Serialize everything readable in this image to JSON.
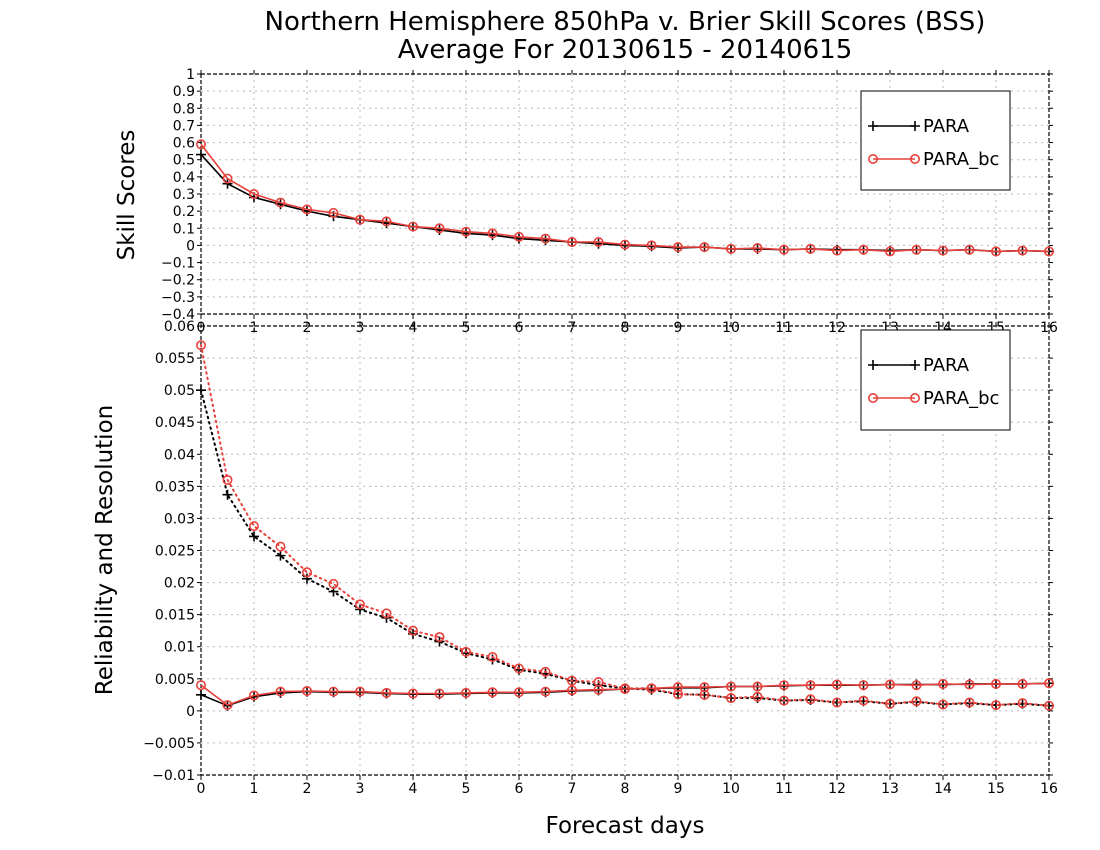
{
  "title_line1": "Northern Hemisphere 850hPa v. Brier Skill Scores (BSS)",
  "title_line2": "Average For 20130615 - 20140615",
  "xlabel": "Forecast days",
  "colors": {
    "PARA": "#000000",
    "PARA_bc": "#e8413c"
  },
  "chart_data": [
    {
      "type": "line",
      "ylabel": "Skill Scores",
      "xlim": [
        0,
        16
      ],
      "ylim": [
        -0.4,
        1
      ],
      "x_ticks": [
        0,
        1,
        2,
        3,
        4,
        5,
        6,
        7,
        8,
        9,
        10,
        11,
        12,
        13,
        14,
        15,
        16
      ],
      "y_ticks": [
        -0.4,
        -0.3,
        -0.2,
        -0.1,
        0,
        0.1,
        0.2,
        0.3,
        0.4,
        0.5,
        0.6,
        0.7,
        0.8,
        0.9,
        1
      ],
      "grid": true,
      "legend": "top-right",
      "x": [
        0,
        0.5,
        1,
        1.5,
        2,
        2.5,
        3,
        3.5,
        4,
        4.5,
        5,
        5.5,
        6,
        6.5,
        7,
        7.5,
        8,
        8.5,
        9,
        9.5,
        10,
        10.5,
        11,
        11.5,
        12,
        12.5,
        13,
        13.5,
        14,
        14.5,
        15,
        15.5,
        16
      ],
      "series": [
        {
          "name": "PARA",
          "style": "solid",
          "marker": "plus",
          "values": [
            0.53,
            0.36,
            0.28,
            0.24,
            0.2,
            0.17,
            0.15,
            0.13,
            0.11,
            0.09,
            0.07,
            0.06,
            0.04,
            0.03,
            0.02,
            0.01,
            0.0,
            -0.005,
            -0.015,
            -0.01,
            -0.02,
            -0.02,
            -0.025,
            -0.02,
            -0.025,
            -0.025,
            -0.03,
            -0.025,
            -0.03,
            -0.025,
            -0.035,
            -0.03,
            -0.035
          ]
        },
        {
          "name": "PARA_bc",
          "style": "solid",
          "marker": "circle",
          "values": [
            0.59,
            0.39,
            0.3,
            0.25,
            0.21,
            0.19,
            0.15,
            0.14,
            0.11,
            0.1,
            0.08,
            0.07,
            0.05,
            0.04,
            0.02,
            0.02,
            0.005,
            0.0,
            -0.01,
            -0.01,
            -0.02,
            -0.015,
            -0.025,
            -0.02,
            -0.03,
            -0.025,
            -0.035,
            -0.025,
            -0.03,
            -0.025,
            -0.035,
            -0.03,
            -0.035
          ]
        }
      ]
    },
    {
      "type": "line",
      "ylabel": "Reliability and Resolution",
      "xlim": [
        0,
        16
      ],
      "ylim": [
        -0.01,
        0.06
      ],
      "x_ticks": [
        0,
        1,
        2,
        3,
        4,
        5,
        6,
        7,
        8,
        9,
        10,
        11,
        12,
        13,
        14,
        15,
        16
      ],
      "y_ticks": [
        -0.01,
        -0.005,
        0,
        0.005,
        0.01,
        0.015,
        0.02,
        0.025,
        0.03,
        0.035,
        0.04,
        0.045,
        0.05,
        0.055,
        0.06
      ],
      "y_tick_labels": [
        "−0.01",
        "−0.005",
        "0",
        "0.005",
        "0.01",
        "0.015",
        "0.02",
        "0.025",
        "0.03",
        "0.035",
        "0.04",
        "0.045",
        "0.05",
        "0.055",
        "0.06"
      ],
      "grid": true,
      "legend": "top-right",
      "x": [
        0,
        0.5,
        1,
        1.5,
        2,
        2.5,
        3,
        3.5,
        4,
        4.5,
        5,
        5.5,
        6,
        6.5,
        7,
        7.5,
        8,
        8.5,
        9,
        9.5,
        10,
        10.5,
        11,
        11.5,
        12,
        12.5,
        13,
        13.5,
        14,
        14.5,
        15,
        15.5,
        16
      ],
      "series": [
        {
          "name": "PARA",
          "style": "dotted",
          "marker": "plus",
          "values": [
            0.05,
            0.0337,
            0.0272,
            0.0242,
            0.0206,
            0.0186,
            0.0158,
            0.0145,
            0.012,
            0.0108,
            0.009,
            0.008,
            0.0064,
            0.0058,
            0.0047,
            0.004,
            0.0035,
            0.0033,
            0.0026,
            0.0025,
            0.002,
            0.002,
            0.0016,
            0.0017,
            0.0013,
            0.0015,
            0.0011,
            0.0014,
            0.001,
            0.0012,
            0.0009,
            0.0011,
            0.0008
          ]
        },
        {
          "name": "PARA_bc",
          "style": "dotted",
          "marker": "circle",
          "values": [
            0.057,
            0.036,
            0.0288,
            0.0256,
            0.0216,
            0.0198,
            0.0166,
            0.0152,
            0.0125,
            0.0115,
            0.0092,
            0.0084,
            0.0066,
            0.0061,
            0.0047,
            0.0045,
            0.0035,
            0.0035,
            0.0026,
            0.0025,
            0.002,
            0.0022,
            0.0016,
            0.0018,
            0.0013,
            0.0016,
            0.0011,
            0.0015,
            0.001,
            0.0013,
            0.0009,
            0.0012,
            0.0008
          ]
        },
        {
          "name": "PARA",
          "style": "solid",
          "marker": "plus",
          "values": [
            0.0025,
            0.0008,
            0.0022,
            0.0028,
            0.003,
            0.0029,
            0.0029,
            0.0027,
            0.0026,
            0.0026,
            0.0027,
            0.0028,
            0.0028,
            0.0029,
            0.0031,
            0.0032,
            0.0034,
            0.0035,
            0.0036,
            0.0036,
            0.0038,
            0.0038,
            0.0039,
            0.004,
            0.004,
            0.004,
            0.0041,
            0.0041,
            0.0041,
            0.0042,
            0.0042,
            0.0042,
            0.0043
          ]
        },
        {
          "name": "PARA_bc",
          "style": "solid",
          "marker": "circle",
          "values": [
            0.004,
            0.0009,
            0.0024,
            0.003,
            0.0031,
            0.003,
            0.003,
            0.0028,
            0.0027,
            0.0027,
            0.0028,
            0.0029,
            0.0029,
            0.003,
            0.0032,
            0.0033,
            0.0034,
            0.0035,
            0.0037,
            0.0037,
            0.0038,
            0.0038,
            0.004,
            0.004,
            0.0041,
            0.004,
            0.0041,
            0.004,
            0.0042,
            0.0041,
            0.0042,
            0.0042,
            0.0043
          ]
        }
      ],
      "legend_entries": [
        "PARA",
        "PARA_bc"
      ]
    }
  ]
}
